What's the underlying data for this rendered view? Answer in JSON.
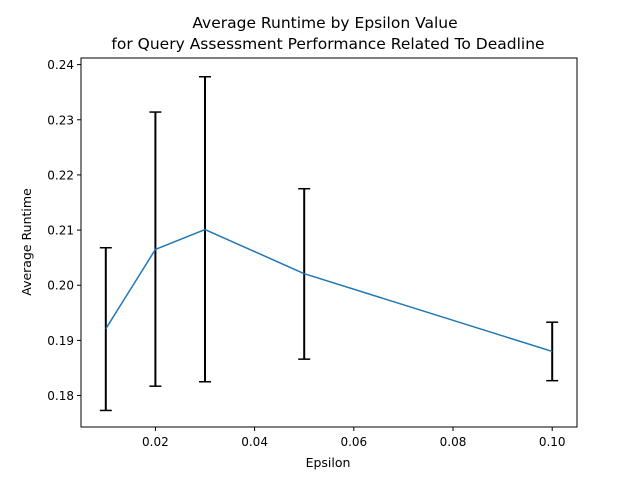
{
  "chart_data": {
    "type": "line",
    "title": "Average Runtime by Epsilon Value",
    "subtitle": "for Query Assessment Performance Related To Deadline",
    "xlabel": "Epsilon",
    "ylabel": "Average Runtime",
    "xlim": [
      0.005,
      0.105
    ],
    "ylim": [
      0.1743,
      0.2412
    ],
    "x_ticks": [
      0.02,
      0.04,
      0.06,
      0.08,
      0.1
    ],
    "x_tick_labels": [
      "0.02",
      "0.04",
      "0.06",
      "0.08",
      "0.10"
    ],
    "y_ticks": [
      0.18,
      0.19,
      0.2,
      0.21,
      0.22,
      0.23,
      0.24
    ],
    "y_tick_labels": [
      "0.18",
      "0.19",
      "0.20",
      "0.21",
      "0.22",
      "0.23",
      "0.24"
    ],
    "grid": false,
    "series": [
      {
        "color": "#1f77b4",
        "error_color": "#000000",
        "x": [
          0.01,
          0.02,
          0.03,
          0.05,
          0.1
        ],
        "y": [
          0.1921,
          0.2065,
          0.2101,
          0.2021,
          0.188
        ],
        "yerr_low": [
          0.1773,
          0.1817,
          0.1825,
          0.1866,
          0.1827
        ],
        "yerr_high": [
          0.2068,
          0.2314,
          0.2378,
          0.2175,
          0.1933
        ]
      }
    ]
  }
}
